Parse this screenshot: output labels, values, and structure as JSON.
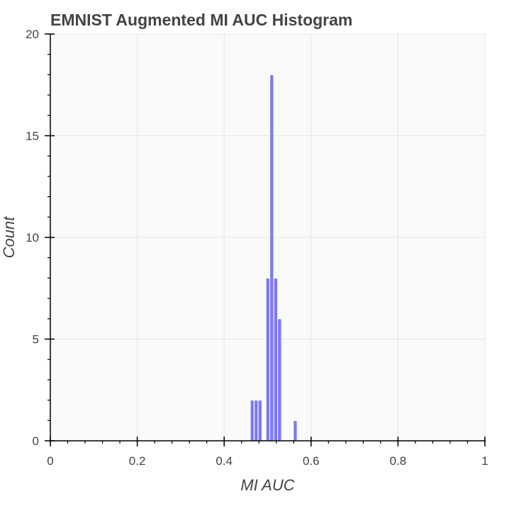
{
  "chart_data": {
    "type": "bar",
    "title": "EMNIST Augmented MI AUC Histogram",
    "xlabel": "MI AUC",
    "ylabel": "Count",
    "xlim": [
      0,
      1
    ],
    "ylim": [
      0,
      20
    ],
    "x_ticks": [
      {
        "value": 0,
        "label": "0"
      },
      {
        "value": 0.2,
        "label": "0.2"
      },
      {
        "value": 0.4,
        "label": "0.4"
      },
      {
        "value": 0.6,
        "label": "0.6"
      },
      {
        "value": 0.8,
        "label": "0.8"
      },
      {
        "value": 1,
        "label": "1"
      }
    ],
    "y_ticks": [
      {
        "value": 0,
        "label": "0"
      },
      {
        "value": 5,
        "label": "5"
      },
      {
        "value": 10,
        "label": "10"
      },
      {
        "value": 15,
        "label": "15"
      },
      {
        "value": 20,
        "label": "20"
      }
    ],
    "grid": true,
    "bar_color": "#7b78f7",
    "bar_edge_color": "#ffffff",
    "plot_background": "#fafafa",
    "grid_color": "#e6e6e6",
    "bins": [
      {
        "x0": 0.46,
        "x1": 0.469,
        "count": 2
      },
      {
        "x0": 0.469,
        "x1": 0.478,
        "count": 2
      },
      {
        "x0": 0.478,
        "x1": 0.487,
        "count": 2
      },
      {
        "x0": 0.487,
        "x1": 0.496,
        "count": 0
      },
      {
        "x0": 0.496,
        "x1": 0.505,
        "count": 8
      },
      {
        "x0": 0.505,
        "x1": 0.514,
        "count": 18
      },
      {
        "x0": 0.514,
        "x1": 0.523,
        "count": 8
      },
      {
        "x0": 0.523,
        "x1": 0.532,
        "count": 6
      },
      {
        "x0": 0.532,
        "x1": 0.541,
        "count": 0
      },
      {
        "x0": 0.541,
        "x1": 0.55,
        "count": 0
      },
      {
        "x0": 0.55,
        "x1": 0.559,
        "count": 0
      },
      {
        "x0": 0.559,
        "x1": 0.568,
        "count": 1
      }
    ]
  }
}
